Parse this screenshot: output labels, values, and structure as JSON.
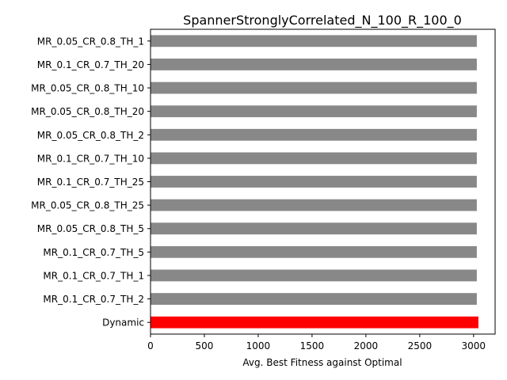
{
  "chart_data": {
    "type": "bar",
    "orientation": "horizontal",
    "title": "SpannerStronglyCorrelated_N_100_R_100_0",
    "xlabel": "Avg. Best Fitness against Optimal",
    "ylabel": "",
    "xlim": [
      0,
      3200
    ],
    "xticks": [
      0,
      500,
      1000,
      1500,
      2000,
      2500,
      3000
    ],
    "grid": false,
    "categories": [
      "MR_0.05_CR_0.8_TH_1",
      "MR_0.1_CR_0.7_TH_20",
      "MR_0.05_CR_0.8_TH_10",
      "MR_0.05_CR_0.8_TH_20",
      "MR_0.05_CR_0.8_TH_2",
      "MR_0.1_CR_0.7_TH_10",
      "MR_0.1_CR_0.7_TH_25",
      "MR_0.05_CR_0.8_TH_25",
      "MR_0.05_CR_0.8_TH_5",
      "MR_0.1_CR_0.7_TH_5",
      "MR_0.1_CR_0.7_TH_1",
      "MR_0.1_CR_0.7_TH_2",
      "Dynamic"
    ],
    "values": [
      3030,
      3030,
      3030,
      3030,
      3030,
      3030,
      3030,
      3030,
      3030,
      3030,
      3030,
      3030,
      3045
    ],
    "colors": [
      "#888888",
      "#888888",
      "#888888",
      "#888888",
      "#888888",
      "#888888",
      "#888888",
      "#888888",
      "#888888",
      "#888888",
      "#888888",
      "#888888",
      "#ff0000"
    ]
  }
}
